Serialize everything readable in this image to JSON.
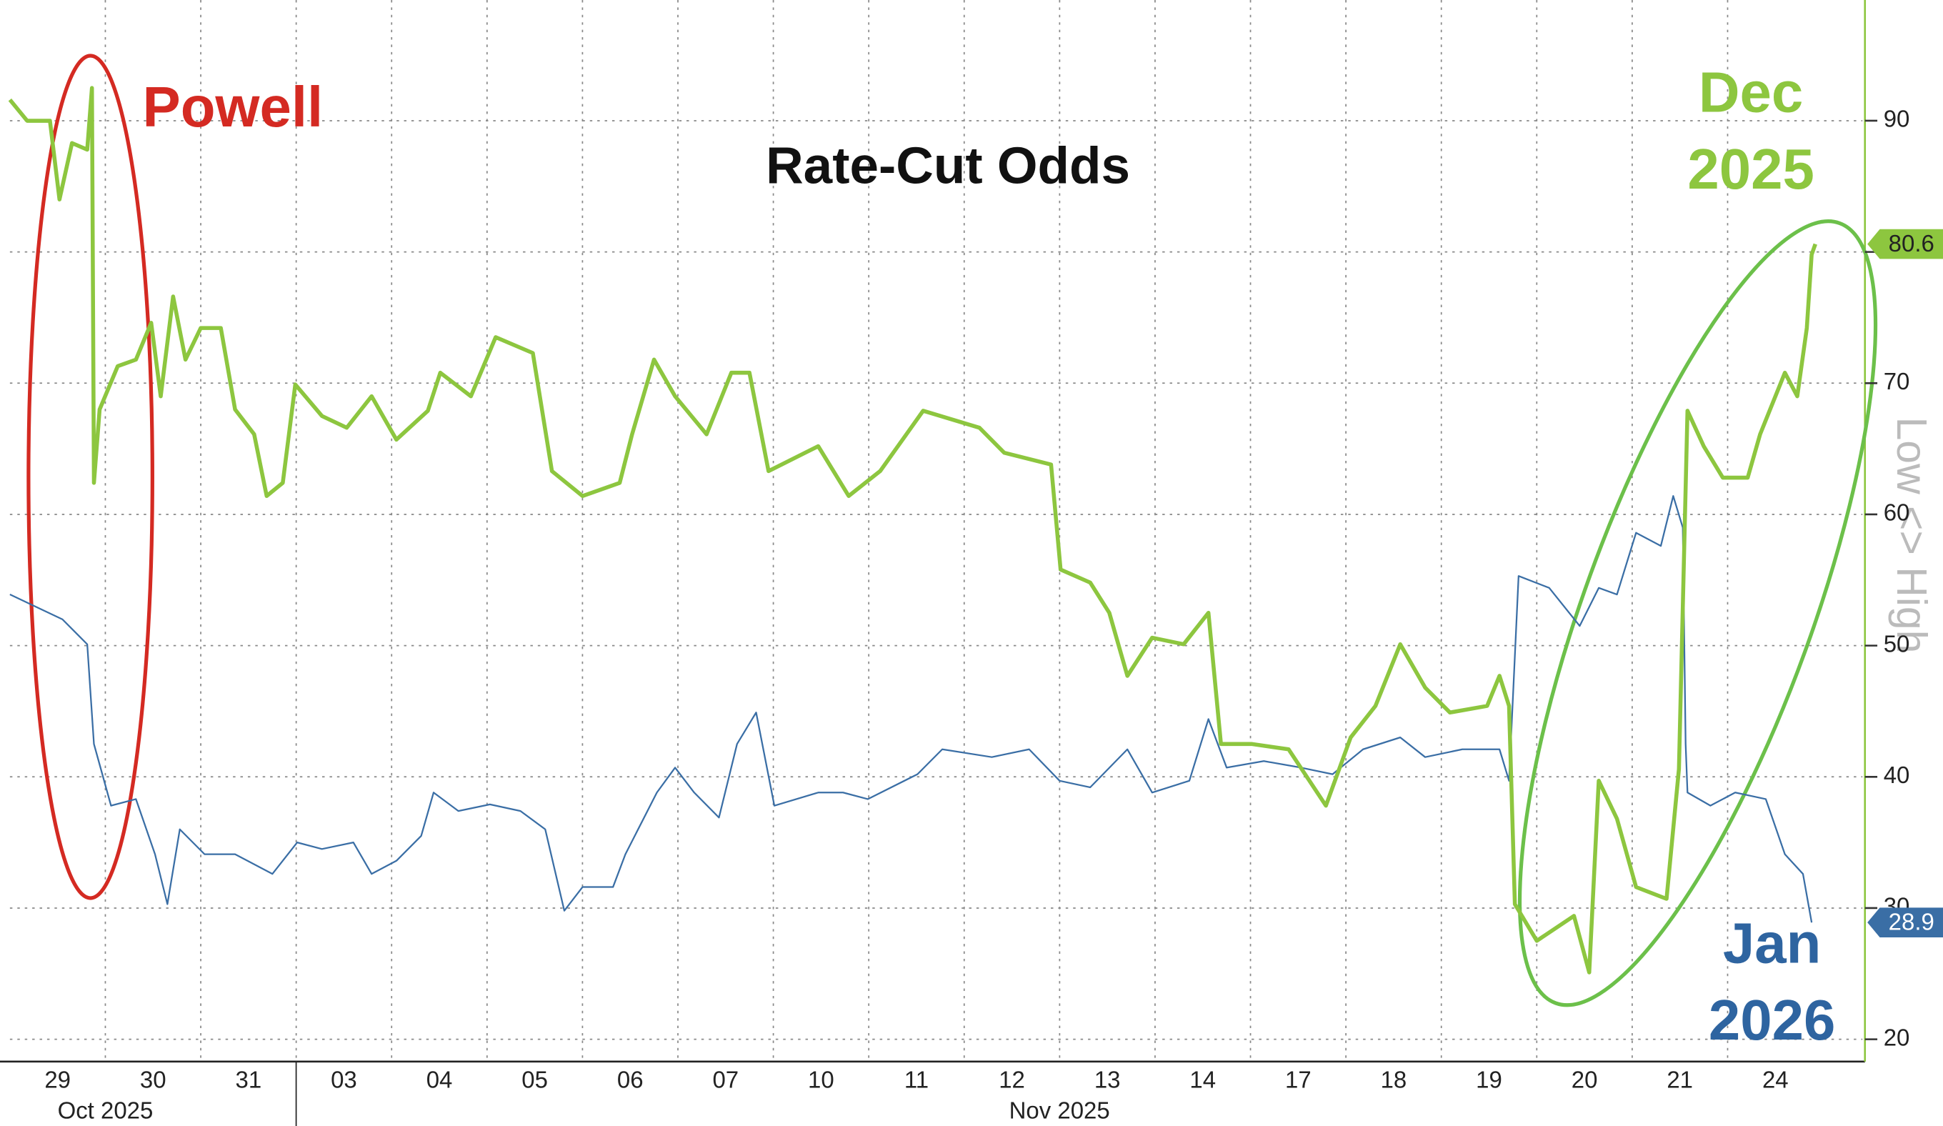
{
  "chart_data": {
    "type": "line",
    "title": "Rate-Cut Odds",
    "y_label": "Low <> High",
    "x_groups": [
      "Oct 2025",
      "Nov 2025"
    ],
    "xlim": [
      0,
      19.4
    ],
    "xticks": [
      {
        "value": 0.5,
        "label": "29"
      },
      {
        "value": 1.5,
        "label": "30"
      },
      {
        "value": 2.5,
        "label": "31"
      },
      {
        "value": 3.5,
        "label": "03"
      },
      {
        "value": 4.5,
        "label": "04"
      },
      {
        "value": 5.5,
        "label": "05"
      },
      {
        "value": 6.5,
        "label": "06"
      },
      {
        "value": 7.5,
        "label": "07"
      },
      {
        "value": 8.5,
        "label": "10"
      },
      {
        "value": 9.5,
        "label": "11"
      },
      {
        "value": 10.5,
        "label": "12"
      },
      {
        "value": 11.5,
        "label": "13"
      },
      {
        "value": 12.5,
        "label": "14"
      },
      {
        "value": 13.5,
        "label": "17"
      },
      {
        "value": 14.5,
        "label": "18"
      },
      {
        "value": 15.5,
        "label": "19"
      },
      {
        "value": 16.5,
        "label": "20"
      },
      {
        "value": 17.5,
        "label": "21"
      },
      {
        "value": 18.5,
        "label": "24"
      }
    ],
    "ylim": [
      18.3,
      99.2
    ],
    "yticks": [
      20,
      30,
      40,
      50,
      60,
      70,
      80,
      90
    ],
    "grid": true,
    "annotations": [
      {
        "lines": [
          "Powell"
        ],
        "color": "#d42a22"
      },
      {
        "lines": [
          "Dec",
          "2025"
        ],
        "color": "#8dc63f"
      },
      {
        "lines": [
          "Jan",
          "2026"
        ],
        "color": "#2e64a0"
      }
    ],
    "series": [
      {
        "name": "Dec 2025",
        "color": "#8dc63f",
        "x": [
          0,
          0.18,
          0.42,
          0.52,
          0.65,
          0.81,
          0.86,
          0.88,
          0.94,
          1.13,
          1.32,
          1.48,
          1.58,
          1.71,
          1.84,
          2,
          2.21,
          2.36,
          2.56,
          2.69,
          2.86,
          2.99,
          3.27,
          3.53,
          3.79,
          4.05,
          4.38,
          4.51,
          4.83,
          5.09,
          5.48,
          5.68,
          6,
          6.39,
          6.52,
          6.75,
          6.97,
          7.3,
          7.56,
          7.75,
          7.95,
          8.47,
          8.79,
          9.12,
          9.57,
          10.16,
          10.42,
          10.91,
          11.01,
          11.32,
          11.52,
          11.71,
          11.97,
          12.3,
          12.56,
          12.69,
          13.01,
          13.4,
          13.79,
          14.05,
          14.31,
          14.57,
          14.83,
          15.09,
          15.48,
          15.61,
          15.71,
          15.77,
          16,
          16.39,
          16.55,
          16.65,
          16.84,
          17.04,
          17.36,
          17.49,
          17.58,
          17.75,
          17.95,
          18.21,
          18.34,
          18.6,
          18.73,
          18.83,
          18.88,
          18.92
        ],
        "values": [
          91.6,
          90,
          90,
          84,
          88.3,
          87.8,
          92.5,
          62.4,
          68,
          71.3,
          71.8,
          74.6,
          69,
          76.6,
          71.8,
          74.2,
          74.2,
          68,
          66.1,
          61.4,
          62.4,
          69.9,
          67.5,
          66.6,
          69,
          65.7,
          67.9,
          70.8,
          69,
          73.5,
          72.3,
          63.3,
          61.4,
          62.4,
          66.1,
          71.8,
          69,
          66.1,
          70.8,
          70.8,
          63.3,
          65.2,
          61.4,
          63.3,
          67.9,
          66.6,
          64.7,
          63.8,
          55.8,
          54.8,
          52.5,
          47.7,
          50.6,
          50.1,
          52.5,
          42.5,
          42.5,
          42.1,
          37.8,
          43,
          45.4,
          50.1,
          46.8,
          44.9,
          45.4,
          47.7,
          45.4,
          30.3,
          27.5,
          29.4,
          25.1,
          39.7,
          36.8,
          31.6,
          30.7,
          40.6,
          67.9,
          65.2,
          62.8,
          62.8,
          66.1,
          70.8,
          69,
          74.2,
          79.8,
          80.6
        ]
      },
      {
        "name": "Jan 2026",
        "color": "#3a6ea5",
        "x": [
          0,
          0.29,
          0.55,
          0.81,
          0.88,
          1.06,
          1.32,
          1.52,
          1.65,
          1.78,
          2.04,
          2.36,
          2.75,
          3.01,
          3.27,
          3.6,
          3.79,
          4.05,
          4.31,
          4.44,
          4.7,
          5.03,
          5.35,
          5.61,
          5.81,
          6,
          6.32,
          6.45,
          6.78,
          6.97,
          7.17,
          7.43,
          7.62,
          7.82,
          8.01,
          8.47,
          8.73,
          8.99,
          9.51,
          9.77,
          10.29,
          10.68,
          11,
          11.32,
          11.71,
          11.97,
          12.36,
          12.56,
          12.75,
          13.14,
          13.53,
          13.86,
          14.18,
          14.57,
          14.83,
          15.22,
          15.61,
          15.71,
          15.81,
          16.13,
          16.45,
          16.65,
          16.84,
          17.04,
          17.3,
          17.43,
          17.53,
          17.56,
          17.58,
          17.82,
          18.08,
          18.4,
          18.6,
          18.79,
          18.88
        ],
        "values": [
          53.9,
          52.9,
          52,
          50.1,
          42.5,
          37.8,
          38.3,
          34.1,
          30.3,
          36,
          34.1,
          34.1,
          32.6,
          35,
          34.5,
          35,
          32.6,
          33.6,
          35.5,
          38.8,
          37.4,
          37.9,
          37.4,
          36,
          29.8,
          31.6,
          31.6,
          34.1,
          38.8,
          40.7,
          38.8,
          36.9,
          42.5,
          44.9,
          37.8,
          38.8,
          38.8,
          38.3,
          40.2,
          42.1,
          41.5,
          42.1,
          39.7,
          39.2,
          42.1,
          38.8,
          39.7,
          44.4,
          40.7,
          41.2,
          40.7,
          40.2,
          42.1,
          43,
          41.5,
          42.1,
          42.1,
          39.7,
          55.3,
          54.4,
          51.5,
          54.4,
          53.9,
          58.6,
          57.6,
          61.4,
          59,
          42.5,
          38.8,
          37.8,
          38.8,
          38.3,
          34.1,
          32.6,
          28.9
        ]
      }
    ]
  }
}
